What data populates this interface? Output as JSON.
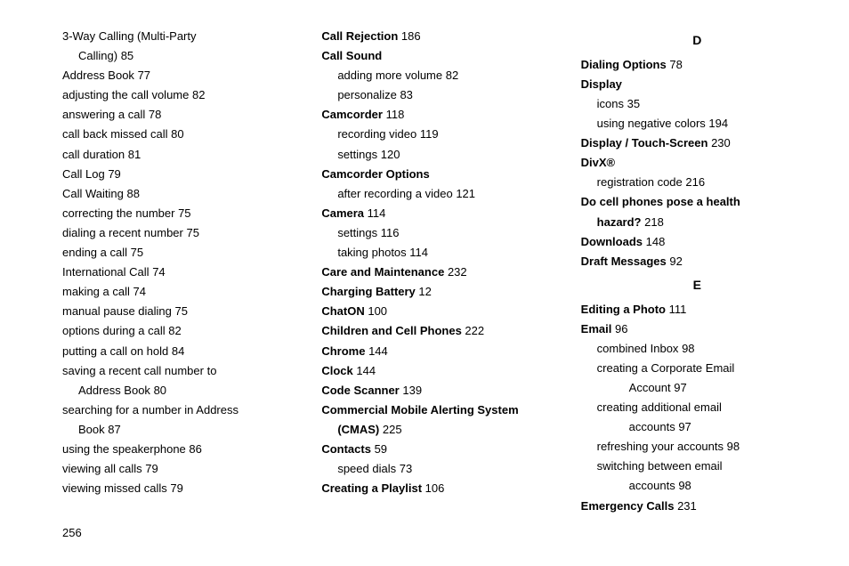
{
  "pageNumber": "256",
  "columns": [
    {
      "items": [
        {
          "type": "entry",
          "term": "3-Way Calling (Multi-Party",
          "page": "",
          "bold": false,
          "indent": 0,
          "cont": "Calling)",
          "contPage": "85"
        },
        {
          "type": "entry",
          "term": "Address Book",
          "page": "77",
          "bold": false,
          "indent": 0
        },
        {
          "type": "entry",
          "term": "adjusting the call volume",
          "page": "82",
          "bold": false,
          "indent": 0
        },
        {
          "type": "entry",
          "term": "answering a call",
          "page": "78",
          "bold": false,
          "indent": 0
        },
        {
          "type": "entry",
          "term": "call back missed call",
          "page": "80",
          "bold": false,
          "indent": 0
        },
        {
          "type": "entry",
          "term": "call duration",
          "page": "81",
          "bold": false,
          "indent": 0
        },
        {
          "type": "entry",
          "term": "Call Log",
          "page": "79",
          "bold": false,
          "indent": 0
        },
        {
          "type": "entry",
          "term": "Call Waiting",
          "page": "88",
          "bold": false,
          "indent": 0
        },
        {
          "type": "entry",
          "term": "correcting the number",
          "page": "75",
          "bold": false,
          "indent": 0
        },
        {
          "type": "entry",
          "term": "dialing a recent number",
          "page": "75",
          "bold": false,
          "indent": 0
        },
        {
          "type": "entry",
          "term": "ending a call",
          "page": "75",
          "bold": false,
          "indent": 0
        },
        {
          "type": "entry",
          "term": "International Call",
          "page": "74",
          "bold": false,
          "indent": 0
        },
        {
          "type": "entry",
          "term": "making a call",
          "page": "74",
          "bold": false,
          "indent": 0
        },
        {
          "type": "entry",
          "term": "manual pause dialing",
          "page": "75",
          "bold": false,
          "indent": 0
        },
        {
          "type": "entry",
          "term": "options during a call",
          "page": "82",
          "bold": false,
          "indent": 0
        },
        {
          "type": "entry",
          "term": "putting a call on hold",
          "page": "84",
          "bold": false,
          "indent": 0
        },
        {
          "type": "entry",
          "term": "saving a recent call number to",
          "page": "",
          "bold": false,
          "indent": 0,
          "cont": "Address Book",
          "contPage": "80"
        },
        {
          "type": "entry",
          "term": "searching for a number in Address",
          "page": "",
          "bold": false,
          "indent": 0,
          "cont": "Book",
          "contPage": "87"
        },
        {
          "type": "entry",
          "term": "using the speakerphone",
          "page": "86",
          "bold": false,
          "indent": 0
        },
        {
          "type": "entry",
          "term": "viewing all calls",
          "page": "79",
          "bold": false,
          "indent": 0
        },
        {
          "type": "entry",
          "term": "viewing missed calls",
          "page": "79",
          "bold": false,
          "indent": 0
        }
      ]
    },
    {
      "items": [
        {
          "type": "entry",
          "term": "Call Rejection",
          "page": "186",
          "bold": true,
          "indent": 0
        },
        {
          "type": "entry",
          "term": "Call Sound",
          "page": "",
          "bold": true,
          "indent": 0
        },
        {
          "type": "entry",
          "term": "adding more volume",
          "page": "82",
          "bold": false,
          "indent": 1
        },
        {
          "type": "entry",
          "term": "personalize",
          "page": "83",
          "bold": false,
          "indent": 1
        },
        {
          "type": "entry",
          "term": "Camcorder",
          "page": "118",
          "bold": true,
          "indent": 0
        },
        {
          "type": "entry",
          "term": "recording video",
          "page": "119",
          "bold": false,
          "indent": 1
        },
        {
          "type": "entry",
          "term": "settings",
          "page": "120",
          "bold": false,
          "indent": 1
        },
        {
          "type": "entry",
          "term": "Camcorder Options",
          "page": "",
          "bold": true,
          "indent": 0
        },
        {
          "type": "entry",
          "term": "after recording a video",
          "page": "121",
          "bold": false,
          "indent": 1
        },
        {
          "type": "entry",
          "term": "Camera",
          "page": "114",
          "bold": true,
          "indent": 0
        },
        {
          "type": "entry",
          "term": "settings",
          "page": "116",
          "bold": false,
          "indent": 1
        },
        {
          "type": "entry",
          "term": "taking photos",
          "page": "114",
          "bold": false,
          "indent": 1
        },
        {
          "type": "entry",
          "term": "Care and Maintenance",
          "page": "232",
          "bold": true,
          "indent": 0
        },
        {
          "type": "entry",
          "term": "Charging Battery",
          "page": "12",
          "bold": true,
          "indent": 0
        },
        {
          "type": "entry",
          "term": "ChatON",
          "page": "100",
          "bold": true,
          "indent": 0
        },
        {
          "type": "entry",
          "term": "Children and Cell Phones",
          "page": "222",
          "bold": true,
          "indent": 0
        },
        {
          "type": "entry",
          "term": "Chrome",
          "page": "144",
          "bold": true,
          "indent": 0
        },
        {
          "type": "entry",
          "term": "Clock",
          "page": "144",
          "bold": true,
          "indent": 0
        },
        {
          "type": "entry",
          "term": "Code Scanner",
          "page": "139",
          "bold": true,
          "indent": 0
        },
        {
          "type": "entry",
          "term": "Commercial Mobile Alerting System",
          "page": "",
          "bold": true,
          "indent": 0,
          "cont": "(CMAS)",
          "contBold": true,
          "contPage": "225"
        },
        {
          "type": "entry",
          "term": "Contacts",
          "page": "59",
          "bold": true,
          "indent": 0
        },
        {
          "type": "entry",
          "term": "speed dials",
          "page": "73",
          "bold": false,
          "indent": 1
        },
        {
          "type": "entry",
          "term": "Creating a Playlist",
          "page": "106",
          "bold": true,
          "indent": 0
        }
      ]
    },
    {
      "items": [
        {
          "type": "letter",
          "term": "D"
        },
        {
          "type": "entry",
          "term": "Dialing Options",
          "page": "78",
          "bold": true,
          "indent": 0
        },
        {
          "type": "entry",
          "term": "Display",
          "page": "",
          "bold": true,
          "indent": 0
        },
        {
          "type": "entry",
          "term": "icons",
          "page": "35",
          "bold": false,
          "indent": 1
        },
        {
          "type": "entry",
          "term": "using negative colors",
          "page": "194",
          "bold": false,
          "indent": 1
        },
        {
          "type": "entry",
          "term": "Display / Touch-Screen",
          "page": "230",
          "bold": true,
          "indent": 0
        },
        {
          "type": "entry",
          "term": "DivX®",
          "page": "",
          "bold": true,
          "indent": 0
        },
        {
          "type": "entry",
          "term": "registration code",
          "page": "216",
          "bold": false,
          "indent": 1
        },
        {
          "type": "entry",
          "term": "Do cell phones pose a health",
          "page": "",
          "bold": true,
          "indent": 0,
          "cont": "hazard?",
          "contBold": true,
          "contPage": "218"
        },
        {
          "type": "entry",
          "term": "Downloads",
          "page": "148",
          "bold": true,
          "indent": 0
        },
        {
          "type": "entry",
          "term": "Draft Messages",
          "page": "92",
          "bold": true,
          "indent": 0
        },
        {
          "type": "letter",
          "term": "E"
        },
        {
          "type": "entry",
          "term": "Editing a Photo",
          "page": "111",
          "bold": true,
          "indent": 0
        },
        {
          "type": "entry",
          "term": "Email",
          "page": "96",
          "bold": true,
          "indent": 0
        },
        {
          "type": "entry",
          "term": "combined Inbox",
          "page": "98",
          "bold": false,
          "indent": 1
        },
        {
          "type": "entry",
          "term": "creating a Corporate Email",
          "page": "",
          "bold": false,
          "indent": 1,
          "cont": "Account",
          "contPage": "97",
          "contIndent": 2
        },
        {
          "type": "entry",
          "term": "creating additional email",
          "page": "",
          "bold": false,
          "indent": 1,
          "cont": "accounts",
          "contPage": "97",
          "contIndent": 2
        },
        {
          "type": "entry",
          "term": "refreshing your accounts",
          "page": "98",
          "bold": false,
          "indent": 1
        },
        {
          "type": "entry",
          "term": "switching between email",
          "page": "",
          "bold": false,
          "indent": 1,
          "cont": "accounts",
          "contPage": "98",
          "contIndent": 2
        },
        {
          "type": "entry",
          "term": "Emergency Calls",
          "page": "231",
          "bold": true,
          "indent": 0
        }
      ]
    }
  ]
}
